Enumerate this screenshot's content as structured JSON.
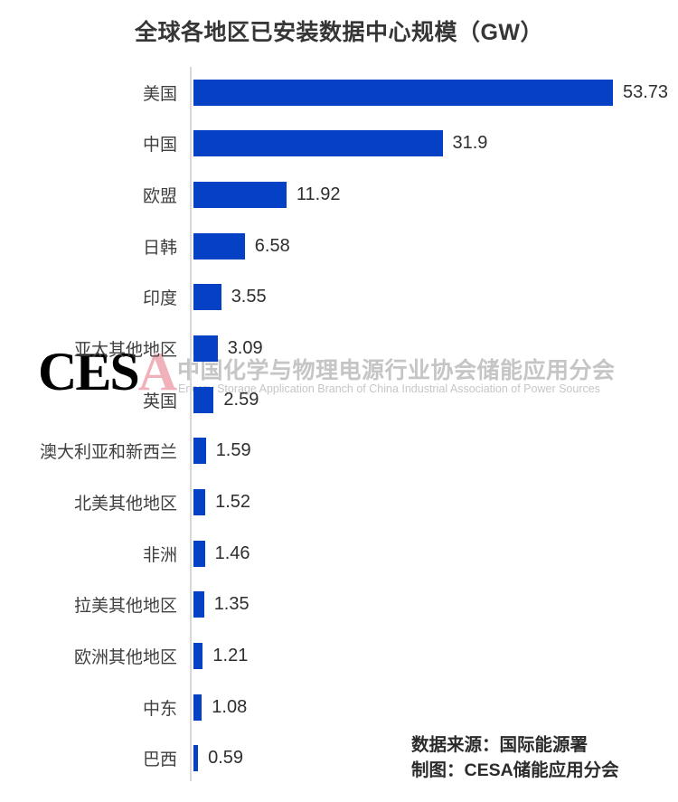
{
  "title": "全球各地区已安装数据中心规模（GW）",
  "chart_data": {
    "type": "bar",
    "orientation": "horizontal",
    "title": "全球各地区已安装数据中心规模（GW）",
    "xlabel": "",
    "ylabel": "",
    "xlim": [
      0,
      55
    ],
    "grid": false,
    "legend": false,
    "bar_color": "#0541c4",
    "categories": [
      "美国",
      "中国",
      "欧盟",
      "日韩",
      "印度",
      "亚太其他地区",
      "英国",
      "澳大利亚和新西兰",
      "北美其他地区",
      "非洲",
      "拉美其他地区",
      "欧洲其他地区",
      "中东",
      "巴西"
    ],
    "values": [
      53.73,
      31.9,
      11.92,
      6.58,
      3.55,
      3.09,
      2.59,
      1.59,
      1.52,
      1.46,
      1.35,
      1.21,
      1.08,
      0.59
    ],
    "value_labels": [
      "53.73",
      "31.9",
      "11.92",
      "6.58",
      "3.55",
      "3.09",
      "2.59",
      "1.59",
      "1.52",
      "1.46",
      "1.35",
      "1.21",
      "1.08",
      "0.59"
    ]
  },
  "watermark": {
    "logo_ces": "CES",
    "logo_a": "A",
    "cn": "中国化学与物理电源行业协会储能应用分会",
    "en": "Energy Storage Application Branch of China Industrial Association of Power Sources"
  },
  "footer": {
    "source": "数据来源：国际能源署",
    "credit": "制图：CESA储能应用分会"
  }
}
